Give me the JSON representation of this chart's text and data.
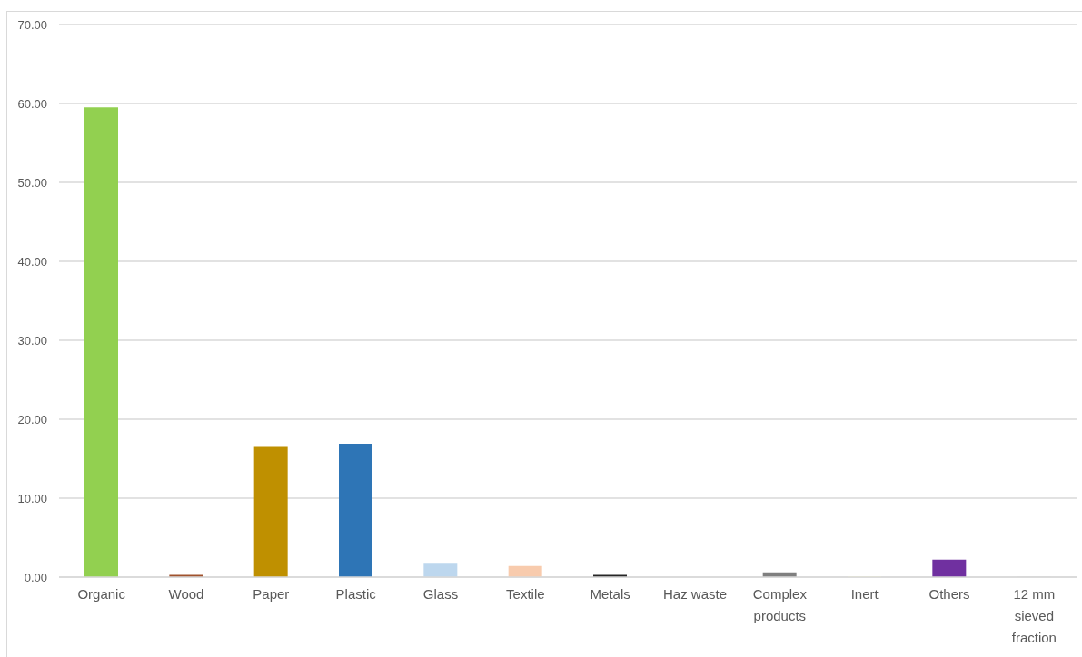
{
  "chart_data": {
    "type": "bar",
    "categories": [
      "Organic",
      "Wood",
      "Paper",
      "Plastic",
      "Glass",
      "Textile",
      "Metals",
      "Haz waste",
      "Complex products",
      "Inert",
      "Others",
      "12 mm sieved fraction"
    ],
    "values": [
      59.5,
      0.3,
      16.5,
      16.9,
      1.8,
      1.4,
      0.3,
      0,
      0.6,
      0.1,
      2.2,
      0.1
    ],
    "colors": [
      "#92d050",
      "#a0522d",
      "#bf9000",
      "#2e75b6",
      "#bdd7ee",
      "#f8cbad",
      "#262626",
      "#c00000",
      "#7f7f7f",
      "#ffffcc",
      "#7030a0",
      "#d9d9d9"
    ],
    "ylim": [
      0,
      70
    ],
    "yticks": [
      {
        "value": 0,
        "label": "0.00"
      },
      {
        "value": 10,
        "label": "10.00"
      },
      {
        "value": 20,
        "label": "20.00"
      },
      {
        "value": 30,
        "label": "30.00"
      },
      {
        "value": 40,
        "label": "40.00"
      },
      {
        "value": 50,
        "label": "50.00"
      },
      {
        "value": 60,
        "label": "60.00"
      },
      {
        "value": 70,
        "label": "70.00"
      }
    ],
    "grid": "y"
  }
}
